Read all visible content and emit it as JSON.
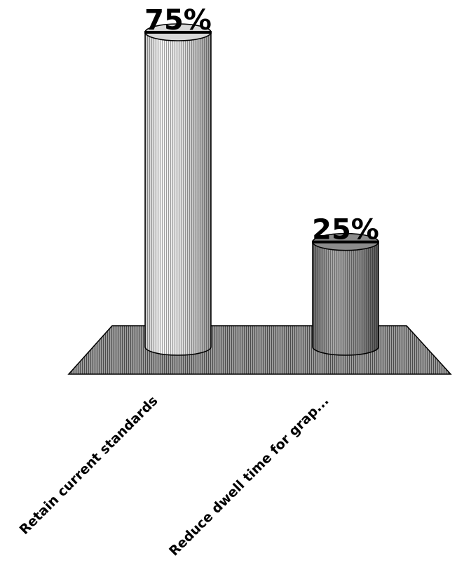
{
  "chart_data": {
    "type": "bar",
    "style": "3d-cylinder",
    "categories": [
      "Retain current standards",
      "Reduce dwell time for grap..."
    ],
    "values": [
      75,
      25
    ],
    "data_labels": [
      "75%",
      "25%"
    ],
    "unit": "%",
    "ylim": [
      0,
      75
    ],
    "grid": false,
    "legend": "none",
    "colors": {
      "floor": "#8a8a8a",
      "bar_light": "#e6e6e6",
      "bar_dark": "#7d7d7d",
      "outline": "#000000"
    }
  }
}
